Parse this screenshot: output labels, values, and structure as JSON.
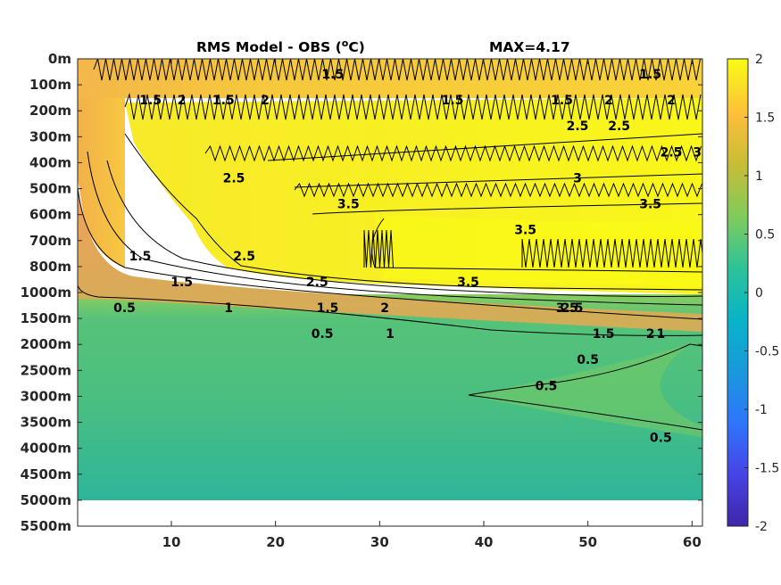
{
  "chart_data": {
    "type": "heatmap",
    "title": "RMS Model - OBS (",
    "title_unit_sup": "o",
    "title_unit_tail": "C)",
    "max_label": "MAX=4.17",
    "x_ticks": [
      10,
      20,
      30,
      40,
      50,
      60
    ],
    "xlim": [
      1,
      61
    ],
    "y_ticks": [
      "0m",
      "100m",
      "200m",
      "300m",
      "400m",
      "500m",
      "600m",
      "700m",
      "800m",
      "1000m",
      "1500m",
      "2000m",
      "2500m",
      "3000m",
      "3500m",
      "4000m",
      "4500m",
      "5000m",
      "5500m"
    ],
    "colorbar": {
      "min": -2,
      "max": 2,
      "ticks": [
        "2",
        "1.5",
        "1",
        "0.5",
        "0",
        "-0.5",
        "-1",
        "-1.5",
        "-2"
      ],
      "colormap": "parula"
    },
    "contour_levels": [
      0.5,
      1,
      1.5,
      2,
      2.5,
      3,
      3.5
    ],
    "contour_labels": [
      {
        "text": "1.5",
        "x": 25.5,
        "depth": "0m"
      },
      {
        "text": "1.5",
        "x": 56,
        "depth": "0m"
      },
      {
        "text": "1.5",
        "x": 8,
        "depth": "100m"
      },
      {
        "text": "2",
        "x": 11,
        "depth": "100m"
      },
      {
        "text": "1.5",
        "x": 15,
        "depth": "100m"
      },
      {
        "text": "2",
        "x": 19,
        "depth": "100m"
      },
      {
        "text": "1.5",
        "x": 37,
        "depth": "100m"
      },
      {
        "text": "1.5",
        "x": 47.5,
        "depth": "100m"
      },
      {
        "text": "2",
        "x": 52,
        "depth": "100m"
      },
      {
        "text": "2",
        "x": 58,
        "depth": "100m"
      },
      {
        "text": "2.5",
        "x": 49,
        "depth": "200m"
      },
      {
        "text": "2.5",
        "x": 53,
        "depth": "200m"
      },
      {
        "text": "2.5",
        "x": 58,
        "depth": "300m"
      },
      {
        "text": "3",
        "x": 60.5,
        "depth": "300m"
      },
      {
        "text": "2.5",
        "x": 16,
        "depth": "400m"
      },
      {
        "text": "3",
        "x": 49,
        "depth": "400m"
      },
      {
        "text": "3.5",
        "x": 27,
        "depth": "500m"
      },
      {
        "text": "3.5",
        "x": 56,
        "depth": "500m"
      },
      {
        "text": "3.5",
        "x": 44,
        "depth": "600m"
      },
      {
        "text": "1.5",
        "x": 7,
        "depth": "700m"
      },
      {
        "text": "2.5",
        "x": 17,
        "depth": "700m"
      },
      {
        "text": "1.5",
        "x": 11,
        "depth": "800m"
      },
      {
        "text": "2.5",
        "x": 24,
        "depth": "800m"
      },
      {
        "text": "3.5",
        "x": 38.5,
        "depth": "800m"
      },
      {
        "text": "3.5",
        "x": 48,
        "depth": "1000m"
      },
      {
        "text": "1",
        "x": 15.5,
        "depth": "1000m"
      },
      {
        "text": "1.5",
        "x": 25,
        "depth": "1000m"
      },
      {
        "text": "2",
        "x": 30.5,
        "depth": "1000m"
      },
      {
        "text": "2.5",
        "x": 48.5,
        "depth": "1000m"
      },
      {
        "text": "0.5",
        "x": 5.5,
        "depth": "1000m"
      },
      {
        "text": "0.5",
        "x": 24.5,
        "depth": "1500m"
      },
      {
        "text": "1",
        "x": 31,
        "depth": "1500m"
      },
      {
        "text": "1.5",
        "x": 51.5,
        "depth": "1500m"
      },
      {
        "text": "2",
        "x": 56,
        "depth": "1500m"
      },
      {
        "text": "1",
        "x": 57,
        "depth": "1500m"
      },
      {
        "text": "0.5",
        "x": 50,
        "depth": "2000m"
      },
      {
        "text": "0.5",
        "x": 46,
        "depth": "2500m"
      },
      {
        "text": "0.5",
        "x": 57,
        "depth": "3500m"
      }
    ]
  }
}
